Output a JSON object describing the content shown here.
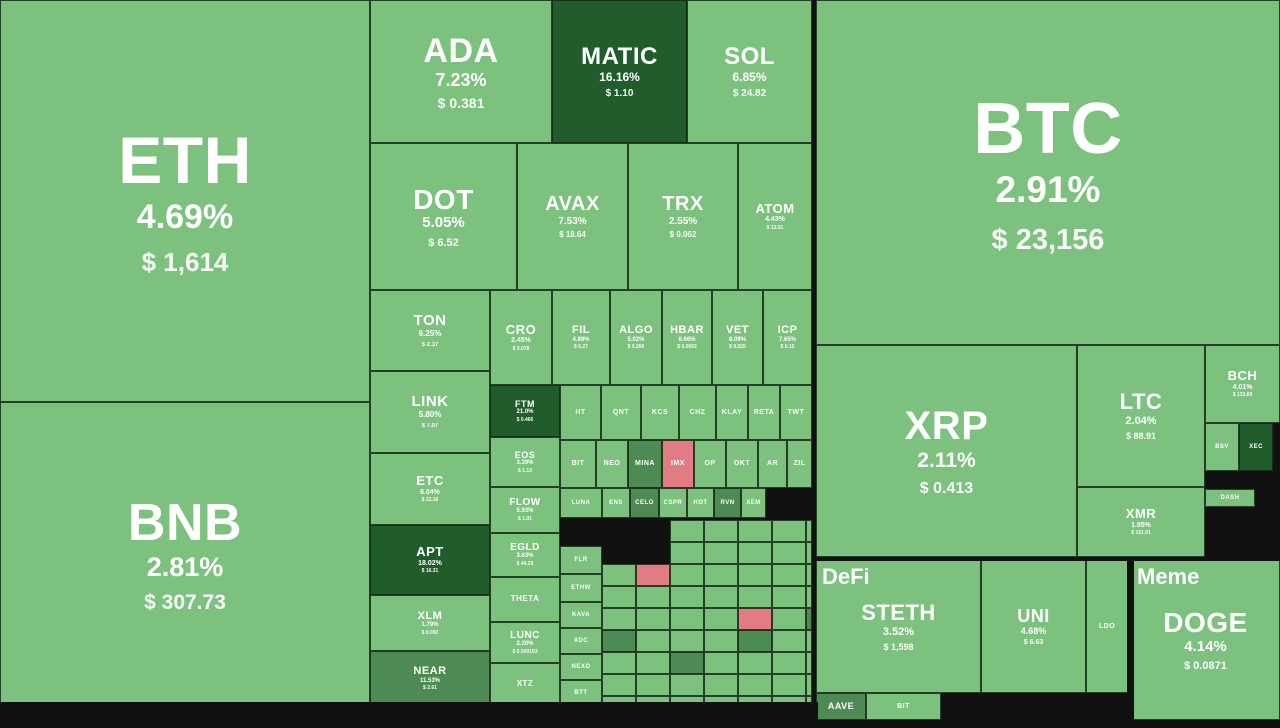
{
  "colors": {
    "up": "#7dc17f",
    "strong_up": "#215c2c",
    "mid_up": "#4e8a53",
    "down": "#e27b83",
    "border": "#111111"
  },
  "sectors": {
    "defi": "DeFi",
    "meme": "Meme"
  },
  "coins": [
    {
      "sym": "ETH",
      "pct": "4.69%",
      "price": "$ 1,614"
    },
    {
      "sym": "BNB",
      "pct": "2.81%",
      "price": "$ 307.73"
    },
    {
      "sym": "ADA",
      "pct": "7.23%",
      "price": "$ 0.381"
    },
    {
      "sym": "MATIC",
      "pct": "16.16%",
      "price": "$ 1.10",
      "tone": "dark"
    },
    {
      "sym": "SOL",
      "pct": "6.85%",
      "price": "$ 24.82"
    },
    {
      "sym": "DOT",
      "pct": "5.05%",
      "price": "$ 6.52"
    },
    {
      "sym": "AVAX",
      "pct": "7.53%",
      "price": "$ 18.64"
    },
    {
      "sym": "TRX",
      "pct": "2.55%",
      "price": "$ 0.062"
    },
    {
      "sym": "ATOM",
      "pct": "4.43%",
      "price": "$ 13.51"
    },
    {
      "sym": "TON",
      "pct": "6.25%",
      "price": "$ 2.37"
    },
    {
      "sym": "LINK",
      "pct": "5.80%",
      "price": "$ 7.07"
    },
    {
      "sym": "ETC",
      "pct": "6.04%",
      "price": "$ 22.16"
    },
    {
      "sym": "APT",
      "pct": "18.02%",
      "price": "$ 16.31",
      "tone": "dark"
    },
    {
      "sym": "XLM",
      "pct": "1.79%",
      "price": "$ 0.092"
    },
    {
      "sym": "NEAR",
      "pct": "11.53%",
      "price": "$ 2.61",
      "tone": "mid"
    },
    {
      "sym": "CRO",
      "pct": "2.45%",
      "price": "$ 0.078"
    },
    {
      "sym": "FIL",
      "pct": "4.89%",
      "price": "$ 6.27"
    },
    {
      "sym": "ALGO",
      "pct": "5.02%",
      "price": "$ 0.266"
    },
    {
      "sym": "HBAR",
      "pct": "8.66%",
      "price": "$ 0.0692"
    },
    {
      "sym": "VET",
      "pct": "8.09%",
      "price": "$ 0.025"
    },
    {
      "sym": "ICP",
      "pct": "7.65%",
      "price": "$ 6.15"
    },
    {
      "sym": "FTM",
      "pct": "21.0%",
      "price": "$ 0.466",
      "tone": "dark"
    },
    {
      "sym": "HT",
      "pct": "",
      "price": ""
    },
    {
      "sym": "QNT",
      "pct": "",
      "price": ""
    },
    {
      "sym": "KCS",
      "pct": "",
      "price": ""
    },
    {
      "sym": "CHZ",
      "pct": "",
      "price": ""
    },
    {
      "sym": "KLAY",
      "pct": "",
      "price": ""
    },
    {
      "sym": "RETA",
      "pct": "",
      "price": ""
    },
    {
      "sym": "TWT",
      "pct": "",
      "price": ""
    },
    {
      "sym": "EOS",
      "pct": "3.39%",
      "price": "$ 1.13"
    },
    {
      "sym": "BIT",
      "pct": "",
      "price": ""
    },
    {
      "sym": "NEO",
      "pct": "",
      "price": ""
    },
    {
      "sym": "MINA",
      "pct": "",
      "price": "",
      "tone": "mid"
    },
    {
      "sym": "IMX",
      "pct": "",
      "price": "",
      "tone": "red"
    },
    {
      "sym": "OP",
      "pct": "",
      "price": ""
    },
    {
      "sym": "OKT",
      "pct": "",
      "price": ""
    },
    {
      "sym": "AR",
      "pct": "",
      "price": ""
    },
    {
      "sym": "ZIL",
      "pct": "",
      "price": ""
    },
    {
      "sym": "FLOW",
      "pct": "5.93%",
      "price": "$ 1.01"
    },
    {
      "sym": "LUNA",
      "pct": "",
      "price": ""
    },
    {
      "sym": "ENS",
      "pct": "",
      "price": ""
    },
    {
      "sym": "CELO",
      "pct": "",
      "price": "",
      "tone": "mid"
    },
    {
      "sym": "CSPR",
      "pct": "",
      "price": ""
    },
    {
      "sym": "HOT",
      "pct": "",
      "price": ""
    },
    {
      "sym": "RVN",
      "pct": "",
      "price": "",
      "tone": "mid"
    },
    {
      "sym": "XEM",
      "pct": "",
      "price": ""
    },
    {
      "sym": "EGLD",
      "pct": "3.63%",
      "price": "$ 44.23"
    },
    {
      "sym": "THETA",
      "pct": "",
      "price": ""
    },
    {
      "sym": "LUNC",
      "pct": "2.20%",
      "price": "$ 0.000153"
    },
    {
      "sym": "XTZ",
      "pct": "",
      "price": ""
    },
    {
      "sym": "FLR",
      "pct": "",
      "price": ""
    },
    {
      "sym": "ETHW",
      "pct": "",
      "price": ""
    },
    {
      "sym": "KAVA",
      "pct": "",
      "price": ""
    },
    {
      "sym": "XDC",
      "pct": "",
      "price": ""
    },
    {
      "sym": "NEXO",
      "pct": "",
      "price": ""
    },
    {
      "sym": "BTT",
      "pct": "",
      "price": ""
    },
    {
      "sym": "BTC",
      "pct": "2.91%",
      "price": "$ 23,156"
    },
    {
      "sym": "XRP",
      "pct": "2.11%",
      "price": "$ 0.413"
    },
    {
      "sym": "LTC",
      "pct": "2.04%",
      "price": "$ 88.91"
    },
    {
      "sym": "BCH",
      "pct": "4.01%",
      "price": "$ 133.69"
    },
    {
      "sym": "XMR",
      "pct": "1.95%",
      "price": "$ 151.91"
    },
    {
      "sym": "BSV",
      "pct": "",
      "price": ""
    },
    {
      "sym": "XEC",
      "pct": "",
      "price": "",
      "tone": "dark"
    },
    {
      "sym": "DASH",
      "pct": "",
      "price": ""
    },
    {
      "sym": "STETH",
      "pct": "3.52%",
      "price": "$ 1,598"
    },
    {
      "sym": "UNI",
      "pct": "4.68%",
      "price": "$ 6.63"
    },
    {
      "sym": "LDO",
      "pct": "",
      "price": ""
    },
    {
      "sym": "AAVE",
      "pct": "",
      "price": "",
      "tone": "mid"
    },
    {
      "sym": "BIT",
      "pct": "",
      "price": ""
    },
    {
      "sym": "DOGE",
      "pct": "4.14%",
      "price": "$ 0.0871"
    }
  ]
}
